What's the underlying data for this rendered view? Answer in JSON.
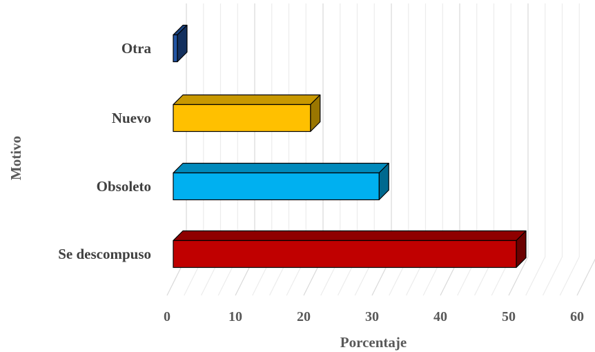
{
  "chart_data": {
    "type": "bar",
    "orientation": "horizontal",
    "style": "3d",
    "categories": [
      "Otra",
      "Nuevo",
      "Obsoleto",
      "Se descompuso"
    ],
    "values": [
      0.6,
      20,
      30,
      50
    ],
    "colors": [
      "#2255A4",
      "#FFC000",
      "#00B0F0",
      "#C00000"
    ],
    "xlabel": "Porcentaje",
    "ylabel": "Motivo",
    "xlim": [
      0,
      60
    ],
    "xticks": [
      "0",
      "10",
      "20",
      "30",
      "40",
      "50",
      "60"
    ],
    "grid": true
  }
}
